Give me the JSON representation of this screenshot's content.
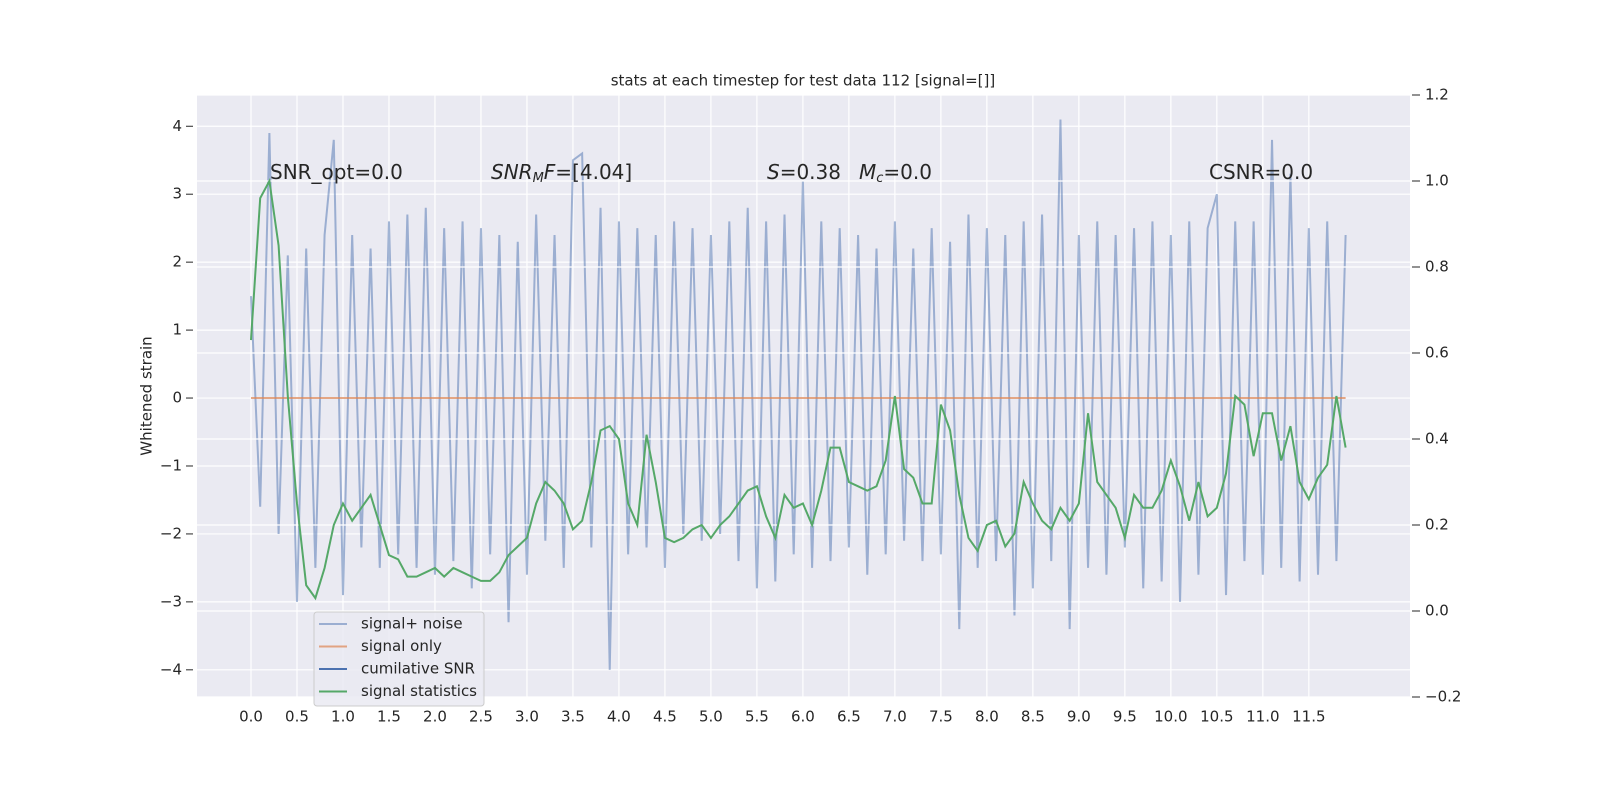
{
  "chart_data": {
    "type": "line",
    "title": "stats at each timestep for test data 112 [signal=[]]",
    "y_label": "Whitened strain",
    "x": [
      0,
      0.1,
      0.2,
      0.3,
      0.4,
      0.5,
      0.6,
      0.7,
      0.8,
      0.9,
      1,
      1.1,
      1.2,
      1.3,
      1.4,
      1.5,
      1.6,
      1.7,
      1.8,
      1.9,
      2,
      2.1,
      2.2,
      2.3,
      2.4,
      2.5,
      2.6,
      2.7,
      2.8,
      2.9,
      3,
      3.1,
      3.2,
      3.3,
      3.4,
      3.5,
      3.6,
      3.7,
      3.8,
      3.9,
      4,
      4.1,
      4.2,
      4.3,
      4.4,
      4.5,
      4.6,
      4.7,
      4.8,
      4.9,
      5,
      5.1,
      5.2,
      5.3,
      5.4,
      5.5,
      5.6,
      5.7,
      5.8,
      5.9,
      6,
      6.1,
      6.2,
      6.3,
      6.4,
      6.5,
      6.6,
      6.7,
      6.8,
      6.9,
      7,
      7.1,
      7.2,
      7.3,
      7.4,
      7.5,
      7.6,
      7.7,
      7.8,
      7.9,
      8,
      8.1,
      8.2,
      8.3,
      8.4,
      8.5,
      8.6,
      8.7,
      8.8,
      8.9,
      9,
      9.1,
      9.2,
      9.3,
      9.4,
      9.5,
      9.6,
      9.7,
      9.8,
      9.9,
      10,
      10.1,
      10.2,
      10.3,
      10.4,
      10.5,
      10.6,
      10.7,
      10.8,
      10.9,
      11,
      11.1,
      11.2,
      11.3,
      11.4,
      11.5,
      11.6,
      11.7,
      11.8,
      11.9
    ],
    "series": [
      {
        "name": "signal+ noise",
        "color": "#4c72b0",
        "opacity": 0.5,
        "values": [
          1.5,
          -1.6,
          3.9,
          -2.0,
          2.1,
          -3.0,
          2.2,
          -2.5,
          2.4,
          3.8,
          -2.9,
          2.4,
          -2.2,
          2.2,
          -2.5,
          2.6,
          -2.3,
          2.7,
          -2.5,
          2.8,
          -2.6,
          2.5,
          -2.4,
          2.6,
          -2.8,
          2.5,
          -2.3,
          2.4,
          -3.3,
          2.3,
          -2.6,
          2.7,
          -2.1,
          2.4,
          -2.5,
          3.5,
          3.6,
          -2.2,
          2.8,
          -4.0,
          2.6,
          -2.3,
          2.5,
          -2.2,
          2.4,
          -2.5,
          2.6,
          -2.0,
          2.5,
          -2.1,
          2.4,
          -2.0,
          2.6,
          -2.4,
          2.8,
          -2.8,
          2.6,
          -2.7,
          2.7,
          -2.3,
          3.2,
          -2.5,
          2.6,
          -2.4,
          2.5,
          -2.2,
          2.4,
          -2.6,
          2.2,
          -2.3,
          2.6,
          -2.1,
          2.2,
          -2.4,
          2.5,
          -2.3,
          2.3,
          -3.4,
          2.7,
          -2.5,
          2.5,
          -2.4,
          2.4,
          -3.2,
          2.6,
          -2.8,
          2.7,
          -2.4,
          4.1,
          -3.4,
          2.4,
          -2.5,
          2.6,
          -2.6,
          2.4,
          -2.2,
          2.5,
          -2.8,
          2.6,
          -2.7,
          2.4,
          -3.0,
          2.6,
          -2.6,
          2.5,
          3.0,
          -2.9,
          2.6,
          -2.4,
          2.6,
          -2.6,
          3.8,
          -2.5,
          3.3,
          -2.7,
          2.5,
          -2.6,
          2.6,
          -2.4,
          2.4
        ]
      },
      {
        "name": "signal only",
        "color": "#dd8452",
        "opacity": 0.7,
        "values": [
          0,
          0,
          0,
          0,
          0,
          0,
          0,
          0,
          0,
          0,
          0,
          0,
          0,
          0,
          0,
          0,
          0,
          0,
          0,
          0,
          0,
          0,
          0,
          0,
          0,
          0,
          0,
          0,
          0,
          0,
          0,
          0,
          0,
          0,
          0,
          0,
          0,
          0,
          0,
          0,
          0,
          0,
          0,
          0,
          0,
          0,
          0,
          0,
          0,
          0,
          0,
          0,
          0,
          0,
          0,
          0,
          0,
          0,
          0,
          0,
          0,
          0,
          0,
          0,
          0,
          0,
          0,
          0,
          0,
          0,
          0,
          0,
          0,
          0,
          0,
          0,
          0,
          0,
          0,
          0,
          0,
          0,
          0,
          0,
          0,
          0,
          0,
          0,
          0,
          0,
          0,
          0,
          0,
          0,
          0,
          0,
          0,
          0,
          0,
          0,
          0,
          0,
          0,
          0,
          0,
          0,
          0,
          0,
          0,
          0,
          0,
          0,
          0,
          0,
          0,
          0,
          0,
          0,
          0,
          0
        ]
      },
      {
        "name": "cumilative SNR",
        "color": "#4c72b0",
        "opacity": 1,
        "axis": "y2",
        "values": [
          null,
          null,
          null,
          null,
          null,
          null,
          null,
          null,
          null,
          null,
          null,
          null,
          null,
          null,
          null,
          null,
          null,
          null,
          null,
          null,
          null,
          null,
          null,
          null,
          null,
          null,
          null,
          null,
          null,
          null,
          null,
          null,
          null,
          null,
          null,
          null,
          null,
          null,
          null,
          null,
          null,
          null,
          null,
          null,
          null,
          null,
          null,
          null,
          null,
          null,
          null,
          null,
          null,
          null,
          null,
          null,
          null,
          null,
          null,
          null,
          null,
          null,
          null,
          null,
          null,
          null,
          null,
          null,
          null,
          null,
          null,
          null,
          null,
          null,
          null,
          null,
          null,
          null,
          null,
          null,
          null,
          null,
          null,
          null,
          null,
          null,
          null,
          null,
          null,
          null,
          null,
          null,
          null,
          null,
          null,
          null,
          null,
          null,
          null,
          null,
          null,
          null,
          null,
          null,
          null,
          null,
          null,
          null,
          null,
          null,
          null,
          null,
          null,
          null,
          null,
          null,
          null,
          null,
          null,
          null
        ]
      },
      {
        "name": "signal statistics",
        "color": "#55a868",
        "opacity": 1,
        "axis": "y2",
        "values": [
          0.63,
          0.96,
          1.0,
          0.85,
          0.5,
          0.25,
          0.06,
          0.03,
          0.1,
          0.2,
          0.25,
          0.21,
          0.24,
          0.27,
          0.2,
          0.13,
          0.12,
          0.08,
          0.08,
          0.09,
          0.1,
          0.08,
          0.1,
          0.09,
          0.08,
          0.07,
          0.07,
          0.09,
          0.13,
          0.15,
          0.17,
          0.25,
          0.3,
          0.28,
          0.25,
          0.19,
          0.21,
          0.3,
          0.42,
          0.43,
          0.4,
          0.25,
          0.2,
          0.41,
          0.3,
          0.17,
          0.16,
          0.17,
          0.19,
          0.2,
          0.17,
          0.2,
          0.22,
          0.25,
          0.28,
          0.29,
          0.22,
          0.17,
          0.27,
          0.24,
          0.25,
          0.2,
          0.28,
          0.38,
          0.38,
          0.3,
          0.29,
          0.28,
          0.29,
          0.35,
          0.5,
          0.33,
          0.31,
          0.25,
          0.25,
          0.48,
          0.42,
          0.27,
          0.17,
          0.14,
          0.2,
          0.21,
          0.15,
          0.18,
          0.3,
          0.25,
          0.21,
          0.19,
          0.24,
          0.21,
          0.25,
          0.46,
          0.3,
          0.27,
          0.24,
          0.17,
          0.27,
          0.24,
          0.24,
          0.28,
          0.35,
          0.29,
          0.21,
          0.3,
          0.22,
          0.24,
          0.32,
          0.5,
          0.48,
          0.36,
          0.46,
          0.46,
          0.35,
          0.43,
          0.3,
          0.26,
          0.31,
          0.34,
          0.5,
          0.38
        ]
      }
    ],
    "xlim": [
      -0.587,
      12.6
    ],
    "ylim": [
      -4.4,
      4.46
    ],
    "y2lim": [
      -0.2,
      1.2
    ],
    "xticks": [
      {
        "value": 0,
        "label": "0.0"
      },
      0.5,
      {
        "value": 1,
        "label": "1.0"
      },
      1.5,
      {
        "value": 2,
        "label": "2.0"
      },
      2.5,
      {
        "value": 3,
        "label": "3.0"
      },
      3.5,
      {
        "value": 4,
        "label": "4.0"
      },
      4.5,
      {
        "value": 5,
        "label": "5.0"
      },
      5.5,
      {
        "value": 6,
        "label": "6.0"
      },
      6.5,
      {
        "value": 7,
        "label": "7.0"
      },
      7.5,
      {
        "value": 8,
        "label": "8.0"
      },
      8.5,
      {
        "value": 9,
        "label": "9.0"
      },
      9.5,
      {
        "value": 10,
        "label": "10.0"
      },
      10.5,
      {
        "value": 11,
        "label": "11.0"
      },
      11.5
    ],
    "yticks": [
      {
        "value": -4,
        "label": "−4"
      },
      {
        "value": -3,
        "label": "−3"
      },
      {
        "value": -2,
        "label": "−2"
      },
      {
        "value": -1,
        "label": "−1"
      },
      0,
      1,
      2,
      3,
      4
    ],
    "y2ticks": [
      {
        "value": -0.2,
        "label": "−0.2"
      },
      {
        "value": 0,
        "label": "0.0"
      },
      0.2,
      0.4,
      0.6,
      0.8,
      {
        "value": 1,
        "label": "1.0"
      },
      1.2
    ],
    "grid": true,
    "legend": "lower left",
    "annotations": [
      {
        "parts": [
          {
            "text": "SNR_opt=0.0"
          }
        ]
      },
      {
        "parts": [
          {
            "text": "SNR",
            "style": "italic"
          },
          {
            "text": "M",
            "style": "sub"
          },
          {
            "text": "F",
            "style": "italic"
          },
          {
            "text": "=[4.04]"
          }
        ]
      },
      {
        "parts": [
          {
            "text": "S",
            "style": "italic"
          },
          {
            "text": "=0.38"
          }
        ]
      },
      {
        "parts": [
          {
            "text": "M",
            "style": "italic"
          },
          {
            "text": "c",
            "style": "sub"
          },
          {
            "text": "=0.0"
          }
        ]
      },
      {
        "parts": [
          {
            "text": "CSNR=0.0"
          }
        ]
      }
    ]
  }
}
